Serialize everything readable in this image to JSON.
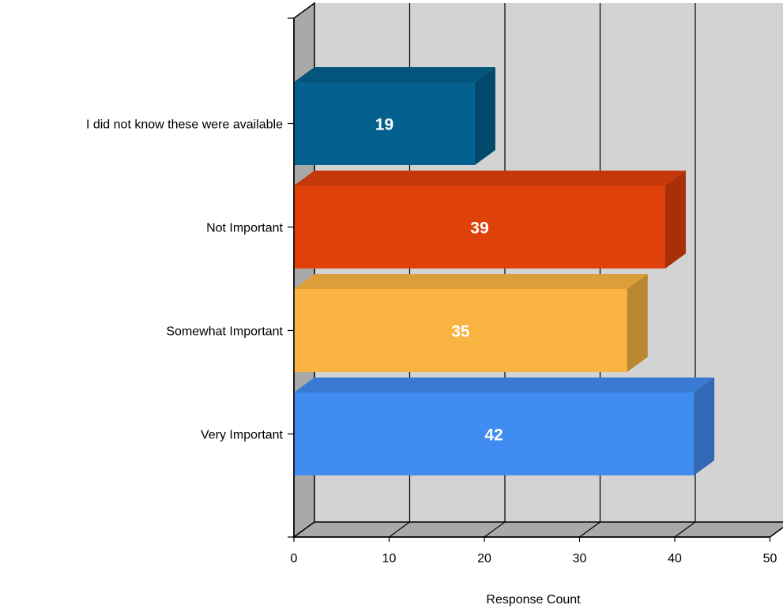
{
  "chart_data": {
    "type": "bar",
    "orientation": "horizontal",
    "style": "3d",
    "categories": [
      "I did not know these were available",
      "Not Important",
      "Somewhat Important",
      "Very Important"
    ],
    "values": [
      19,
      39,
      35,
      42
    ],
    "data_labels": [
      "19",
      "39",
      "35",
      "42"
    ],
    "bar_colors": [
      "#04618F",
      "#E0400A",
      "#F9B341",
      "#418CF0"
    ],
    "xlabel": "Response Count",
    "xlim": [
      0,
      50
    ],
    "x_ticks": [
      0,
      10,
      20,
      30,
      40,
      50
    ],
    "x_tick_labels": [
      "0",
      "10",
      "20",
      "30",
      "40",
      "50"
    ],
    "grid": true,
    "legend": "none",
    "wall_color": "#D3D3D3"
  }
}
